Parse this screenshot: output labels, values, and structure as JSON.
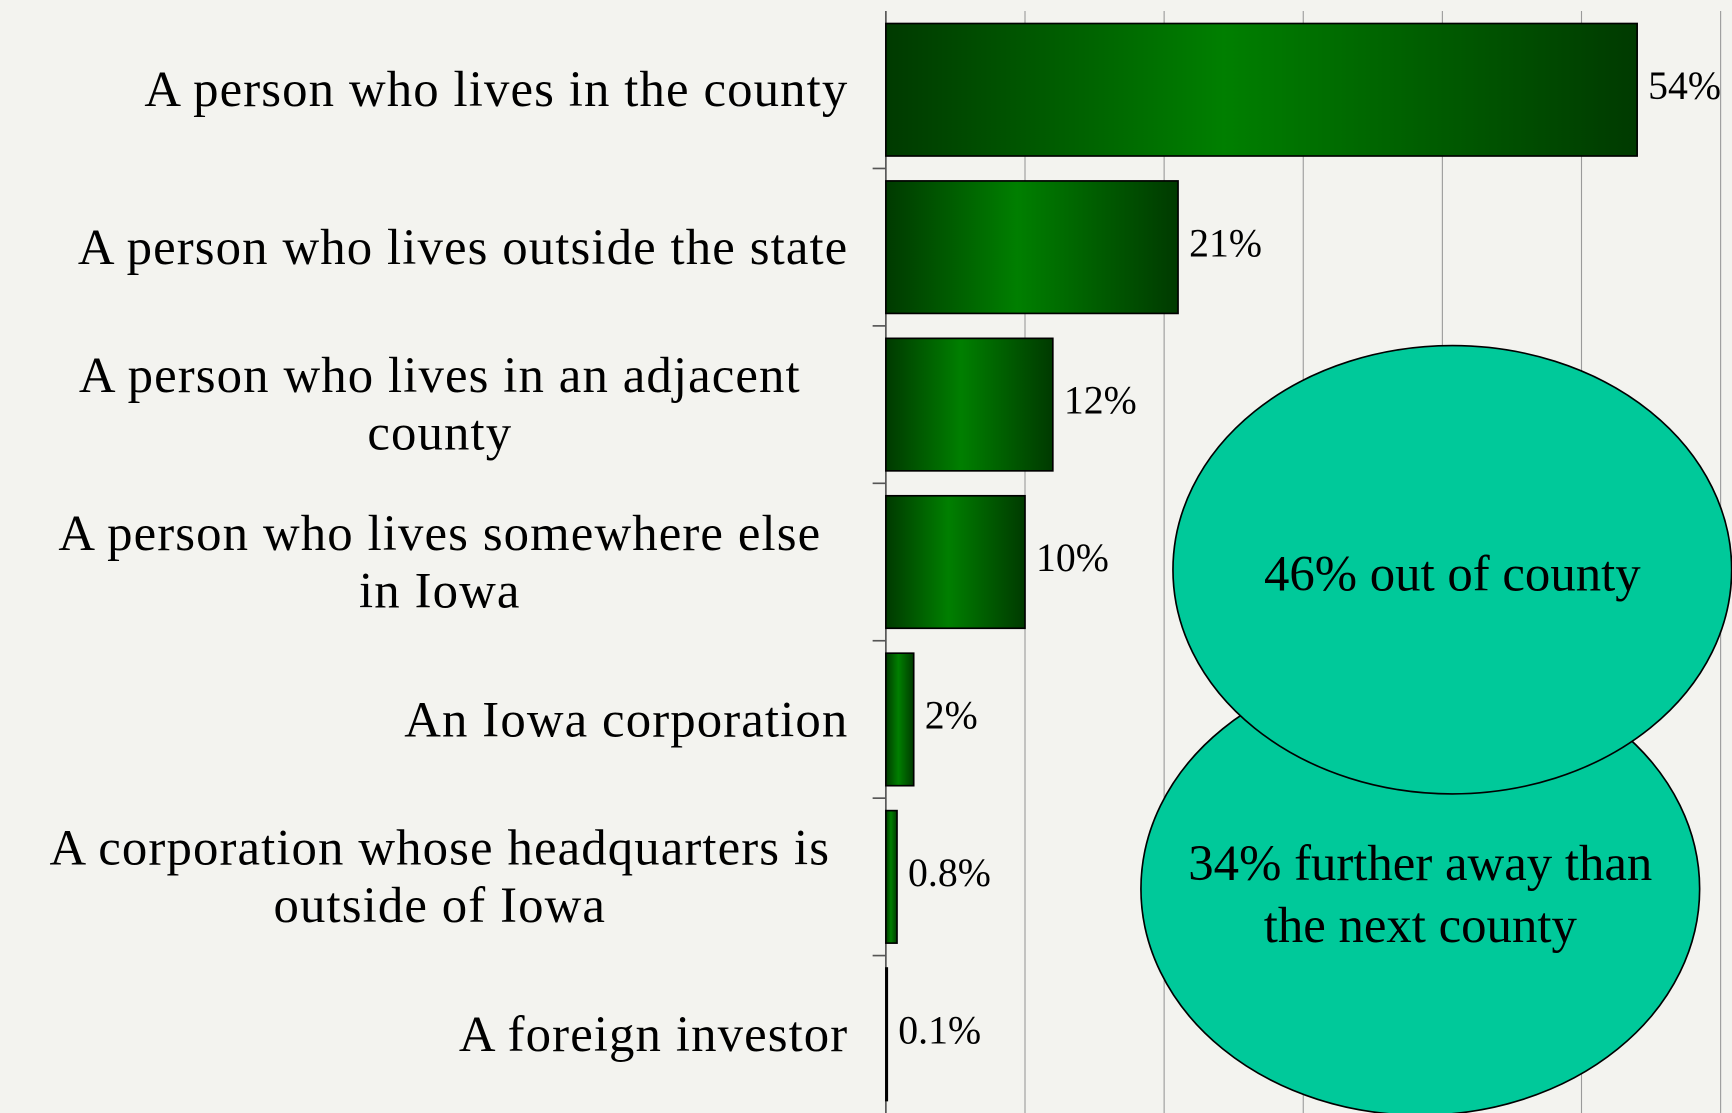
{
  "chart_data": {
    "type": "bar",
    "categories": [
      "A person who lives in the county",
      "A person who lives outside the state",
      "A person who lives in an adjacent county",
      "A person who lives somewhere else in Iowa",
      "An Iowa corporation",
      "A corporation whose headquarters is outside of Iowa",
      "A foreign investor"
    ],
    "values": [
      54,
      21,
      12,
      10,
      2,
      0.8,
      0.1
    ],
    "value_labels": [
      "54%",
      "21%",
      "12%",
      "10%",
      "2%",
      "0.8%",
      "0.1%"
    ],
    "color": "#007a00",
    "xlim": [
      0,
      60
    ],
    "xticks": [
      0,
      10,
      20,
      30,
      40,
      50,
      60
    ],
    "grid": true,
    "annotations": [
      "46% out of county",
      "34% further away than the next county"
    ],
    "annotation_color": "#00c99a"
  }
}
